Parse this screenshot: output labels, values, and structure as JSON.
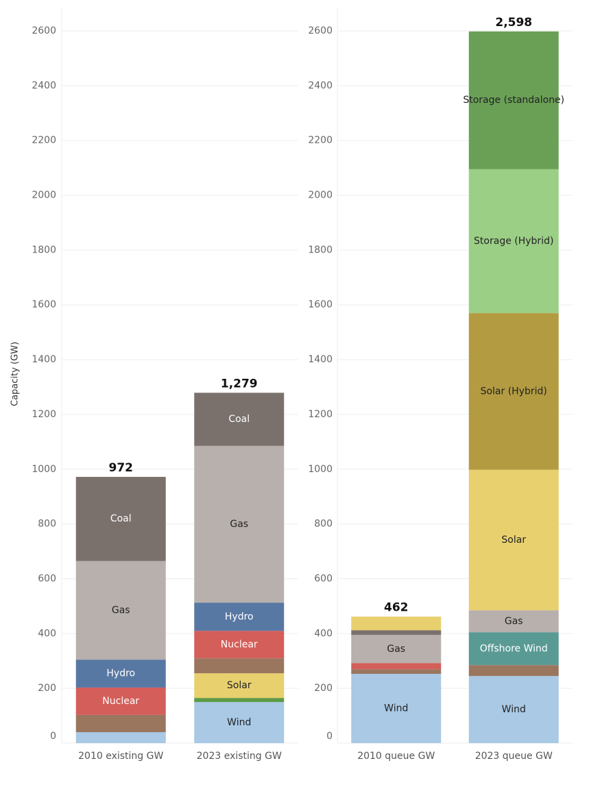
{
  "chart_data": [
    {
      "type": "bar",
      "stacked": true,
      "ylabel": "Capacity (GW)",
      "categories": [
        "2010 existing GW",
        "2023 existing GW"
      ],
      "ylim": [
        0,
        2600
      ],
      "yticks": [
        0,
        200,
        400,
        600,
        800,
        1000,
        1200,
        1400,
        1600,
        1800,
        2000,
        2200,
        2400,
        2600
      ],
      "grid": true,
      "totals": [
        972,
        1279
      ],
      "total_labels": [
        "972",
        "1,279"
      ],
      "series": [
        {
          "color": "#a9c9e5",
          "label_color": "#222",
          "values": [
            40,
            150
          ],
          "labels": [
            null,
            "Wind"
          ]
        },
        {
          "color": "#5e9a45",
          "label_color": "#222",
          "values": [
            null,
            15
          ],
          "labels": [
            null,
            null
          ]
        },
        {
          "color": "#e8d06f",
          "label_color": "#222",
          "values": [
            null,
            90
          ],
          "labels": [
            null,
            "Solar"
          ]
        },
        {
          "color": "#9a765e",
          "label_color": "#222",
          "values": [
            63,
            55
          ],
          "labels": [
            null,
            null
          ]
        },
        {
          "color": "#d45e5a",
          "label_color": "#fff",
          "values": [
            100,
            100
          ],
          "labels": [
            "Nuclear",
            "Nuclear"
          ]
        },
        {
          "color": "#5878a4",
          "label_color": "#fff",
          "values": [
            102,
            103
          ],
          "labels": [
            "Hydro",
            "Hydro"
          ]
        },
        {
          "color": "#b8b0ac",
          "label_color": "#222",
          "values": [
            360,
            572
          ],
          "labels": [
            "Gas",
            "Gas"
          ]
        },
        {
          "color": "#7a716d",
          "label_color": "#fff",
          "values": [
            307,
            194
          ],
          "labels": [
            "Coal",
            "Coal"
          ]
        }
      ]
    },
    {
      "type": "bar",
      "stacked": true,
      "categories": [
        "2010 queue GW",
        "2023 queue GW"
      ],
      "ylim": [
        0,
        2600
      ],
      "yticks": [
        0,
        200,
        400,
        600,
        800,
        1000,
        1200,
        1400,
        1600,
        1800,
        2000,
        2200,
        2400,
        2600
      ],
      "grid": true,
      "totals": [
        462,
        2598
      ],
      "total_labels": [
        "462",
        "2,598"
      ],
      "series": [
        {
          "color": "#a9c9e5",
          "label_color": "#222",
          "values": [
            253,
            245
          ],
          "labels": [
            "Wind",
            "Wind"
          ]
        },
        {
          "color": "#9a765e",
          "label_color": "#222",
          "values": [
            17,
            40
          ],
          "labels": [
            null,
            null
          ]
        },
        {
          "color": "#d45e5a",
          "label_color": "#fff",
          "values": [
            22,
            null
          ],
          "labels": [
            null,
            null
          ]
        },
        {
          "color": "#5a9a94",
          "label_color": "#fff",
          "values": [
            null,
            120
          ],
          "labels": [
            null,
            "Offshore Wind"
          ]
        },
        {
          "color": "#b8b0ac",
          "label_color": "#222",
          "values": [
            103,
            80
          ],
          "labels": [
            "Gas",
            "Gas"
          ]
        },
        {
          "color": "#7a716d",
          "label_color": "#fff",
          "values": [
            17,
            null
          ],
          "labels": [
            null,
            null
          ]
        },
        {
          "color": "#e8d06f",
          "label_color": "#222",
          "values": [
            50,
            513
          ],
          "labels": [
            null,
            "Solar"
          ]
        },
        {
          "color": "#b39b42",
          "label_color": "#222",
          "values": [
            null,
            572
          ],
          "labels": [
            null,
            "Solar (Hybrid)"
          ]
        },
        {
          "color": "#9ccf86",
          "label_color": "#222",
          "values": [
            null,
            525
          ],
          "labels": [
            null,
            "Storage (Hybrid)"
          ]
        },
        {
          "color": "#6aa056",
          "label_color": "#222",
          "values": [
            null,
            503
          ],
          "labels": [
            null,
            "Storage (standalone)"
          ]
        }
      ]
    }
  ]
}
